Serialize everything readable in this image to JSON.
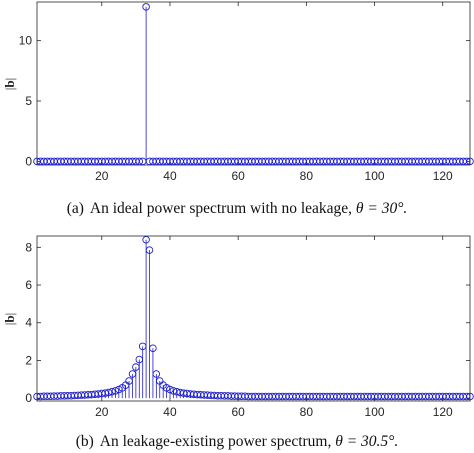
{
  "chart_data": [
    {
      "type": "stem",
      "panel": "a",
      "caption_prefix": "(a)",
      "caption_text": "An ideal power spectrum with no leakage, ",
      "caption_theta": "θ = 30°.",
      "ylabel_pre": "|",
      "ylabel_bold": "b",
      "ylabel_post": "|",
      "xlim": [
        1,
        128
      ],
      "ylim": [
        -0.3,
        13.2
      ],
      "xticks": [
        20,
        40,
        60,
        80,
        100,
        120
      ],
      "yticks": [
        0,
        5,
        10
      ],
      "color": "#1f1fcf",
      "n": 128,
      "baseline": 0,
      "peaks": [
        {
          "x": 33,
          "y": 12.8
        }
      ]
    },
    {
      "type": "stem",
      "panel": "b",
      "caption_prefix": "(b)",
      "caption_text": "An leakage-existing power spectrum, ",
      "caption_theta": "θ = 30.5°.",
      "ylabel_pre": "|",
      "ylabel_bold": "b",
      "ylabel_post": "|",
      "xlim": [
        1,
        128
      ],
      "ylim": [
        -0.15,
        8.6
      ],
      "xticks": [
        20,
        40,
        60,
        80,
        100,
        120
      ],
      "yticks": [
        0,
        2,
        4,
        6,
        8
      ],
      "color": "#1f1fcf",
      "x": [
        1,
        2,
        3,
        4,
        5,
        6,
        7,
        8,
        9,
        10,
        11,
        12,
        13,
        14,
        15,
        16,
        17,
        18,
        19,
        20,
        21,
        22,
        23,
        24,
        25,
        26,
        27,
        28,
        29,
        30,
        31,
        32,
        33,
        34,
        35,
        36,
        37,
        38,
        39,
        40,
        41,
        42,
        43,
        44,
        45,
        46,
        47,
        48,
        49,
        50,
        51,
        52,
        53,
        54,
        55,
        56,
        57,
        58,
        59,
        60,
        61,
        62,
        63,
        64,
        65,
        66,
        67,
        68,
        69,
        70,
        71,
        72,
        73,
        74,
        75,
        76,
        77,
        78,
        79,
        80,
        81,
        82,
        83,
        84,
        85,
        86,
        87,
        88,
        89,
        90,
        91,
        92,
        93,
        94,
        95,
        96,
        97,
        98,
        99,
        100,
        101,
        102,
        103,
        104,
        105,
        106,
        107,
        108,
        109,
        110,
        111,
        112,
        113,
        114,
        115,
        116,
        117,
        118,
        119,
        120,
        121,
        122,
        123,
        124,
        125,
        126,
        127,
        128
      ],
      "y": [
        0.09,
        0.09,
        0.1,
        0.1,
        0.1,
        0.11,
        0.11,
        0.12,
        0.12,
        0.13,
        0.13,
        0.14,
        0.15,
        0.16,
        0.17,
        0.18,
        0.19,
        0.21,
        0.22,
        0.25,
        0.27,
        0.3,
        0.34,
        0.39,
        0.46,
        0.55,
        0.69,
        0.91,
        1.28,
        1.65,
        2.05,
        2.75,
        8.4,
        7.85,
        2.65,
        1.28,
        0.91,
        0.69,
        0.55,
        0.46,
        0.39,
        0.34,
        0.3,
        0.27,
        0.25,
        0.22,
        0.21,
        0.19,
        0.18,
        0.17,
        0.16,
        0.15,
        0.14,
        0.13,
        0.13,
        0.12,
        0.12,
        0.11,
        0.11,
        0.1,
        0.1,
        0.1,
        0.09,
        0.09,
        0.09,
        0.09,
        0.09,
        0.09,
        0.09,
        0.09,
        0.09,
        0.09,
        0.09,
        0.09,
        0.09,
        0.09,
        0.09,
        0.09,
        0.09,
        0.09,
        0.09,
        0.09,
        0.09,
        0.09,
        0.09,
        0.09,
        0.09,
        0.09,
        0.09,
        0.09,
        0.09,
        0.09,
        0.09,
        0.09,
        0.09,
        0.09,
        0.09,
        0.09,
        0.09,
        0.09,
        0.09,
        0.09,
        0.09,
        0.09,
        0.09,
        0.09,
        0.09,
        0.09,
        0.09,
        0.09,
        0.09,
        0.09,
        0.09,
        0.09,
        0.09,
        0.09,
        0.09,
        0.09,
        0.09,
        0.09,
        0.09,
        0.09,
        0.09,
        0.09,
        0.09,
        0.09,
        0.09,
        0.09
      ]
    }
  ]
}
